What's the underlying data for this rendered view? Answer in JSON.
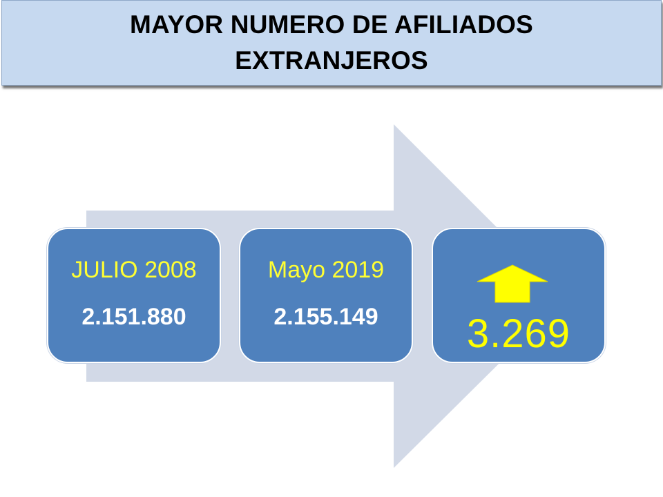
{
  "title": {
    "line1": "MAYOR NUMERO DE AFILIADOS",
    "line2": "EXTRANJEROS"
  },
  "steps": [
    {
      "label": "JULIO 2008",
      "value": "2.151.880"
    },
    {
      "label": "Mayo 2019",
      "value": "2.155.149"
    }
  ],
  "result": {
    "value": "3.269",
    "icon": "up-arrow-icon"
  },
  "colors": {
    "title_bg": "#c6d9f0",
    "box_fill": "#4f81bd",
    "arrow_fill": "#d2d9e7",
    "label_text": "#ffff33",
    "value_text": "#ffffff",
    "result_text": "#ffff00"
  }
}
